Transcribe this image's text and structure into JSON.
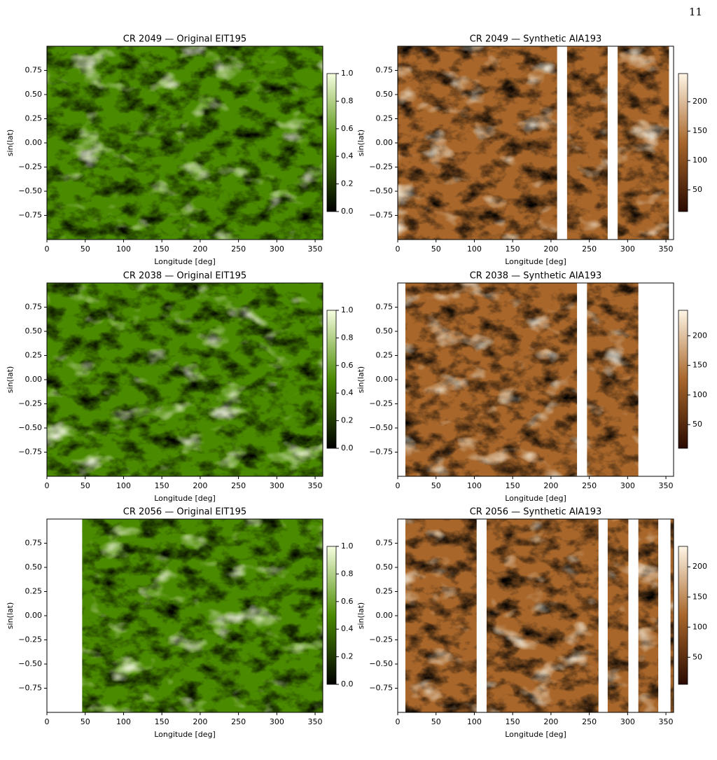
{
  "page_number": "11",
  "chart_data": [
    {
      "type": "heatmap",
      "title": "CR 2049 — Original EIT195",
      "xlabel": "Longitude [deg]",
      "ylabel": "sin(lat)",
      "xlim": [
        0,
        360
      ],
      "ylim": [
        -1,
        1
      ],
      "xticks": [
        0,
        50,
        100,
        150,
        200,
        250,
        300,
        350
      ],
      "yticks": [
        0.75,
        {
          "value": 0.5,
          "label": "0.50"
        },
        0.25,
        {
          "value": 0,
          "label": "0.00"
        },
        {
          "value": -0.25,
          "label": "−0.25"
        },
        {
          "value": -0.5,
          "label": "−0.50"
        },
        {
          "value": -0.75,
          "label": "−0.75"
        }
      ],
      "clim": [
        0,
        1
      ],
      "cticks": [
        {
          "value": 0,
          "label": "0.0"
        },
        0.2,
        0.4,
        0.6,
        0.8,
        {
          "value": 1,
          "label": "1.0"
        }
      ],
      "colors": [
        "#000000",
        "#4a8a00",
        "#f6ffe0"
      ]
    },
    {
      "type": "heatmap",
      "title": "CR 2049 — Synthetic AIA193",
      "xlabel": "Longitude [deg]",
      "ylabel": "sin(lat)",
      "xlim": [
        0,
        360
      ],
      "ylim": [
        -1,
        1
      ],
      "xticks": [
        0,
        50,
        100,
        150,
        200,
        250,
        300,
        350
      ],
      "yticks": [
        0.75,
        {
          "value": 0.5,
          "label": "0.50"
        },
        0.25,
        {
          "value": 0,
          "label": "0.00"
        },
        {
          "value": -0.25,
          "label": "−0.25"
        },
        {
          "value": -0.5,
          "label": "−0.50"
        },
        {
          "value": -0.75,
          "label": "−0.75"
        }
      ],
      "clim": [
        13,
        248
      ],
      "cticks": [
        50,
        100,
        150,
        200
      ],
      "colors": [
        "#2a0a00",
        "#a8662a",
        "#fff6e6"
      ],
      "gaps": [
        [
          208,
          221
        ],
        [
          274,
          287
        ],
        [
          354,
          360
        ]
      ]
    },
    {
      "type": "heatmap",
      "title": "CR 2038 — Original EIT195",
      "xlabel": "Longitude [deg]",
      "ylabel": "sin(lat)",
      "xlim": [
        0,
        360
      ],
      "ylim": [
        -1,
        1
      ],
      "xticks": [
        0,
        50,
        100,
        150,
        200,
        250,
        300,
        350
      ],
      "yticks": [
        0.75,
        {
          "value": 0.5,
          "label": "0.50"
        },
        0.25,
        {
          "value": 0,
          "label": "0.00"
        },
        {
          "value": -0.25,
          "label": "−0.25"
        },
        {
          "value": -0.5,
          "label": "−0.50"
        },
        {
          "value": -0.75,
          "label": "−0.75"
        }
      ],
      "clim": [
        0,
        1
      ],
      "cticks": [
        {
          "value": 0,
          "label": "0.0"
        },
        0.2,
        0.4,
        0.6,
        0.8,
        {
          "value": 1,
          "label": "1.0"
        }
      ],
      "colors": [
        "#000000",
        "#4a8a00",
        "#f6ffe0"
      ]
    },
    {
      "type": "heatmap",
      "title": "CR 2038 — Synthetic AIA193",
      "xlabel": "Longitude [deg]",
      "ylabel": "sin(lat)",
      "xlim": [
        0,
        360
      ],
      "ylim": [
        -1,
        1
      ],
      "xticks": [
        0,
        50,
        100,
        150,
        200,
        250,
        300,
        350
      ],
      "yticks": [
        0.75,
        {
          "value": 0.5,
          "label": "0.50"
        },
        0.25,
        {
          "value": 0,
          "label": "0.00"
        },
        {
          "value": -0.25,
          "label": "−0.25"
        },
        {
          "value": -0.5,
          "label": "−0.50"
        },
        {
          "value": -0.75,
          "label": "−0.75"
        }
      ],
      "clim": [
        10,
        243
      ],
      "cticks": [
        50,
        100,
        150,
        200
      ],
      "colors": [
        "#2a0a00",
        "#a8662a",
        "#fff6e6"
      ],
      "gaps": [
        [
          0,
          10
        ],
        [
          234,
          247
        ],
        [
          314,
          360
        ]
      ]
    },
    {
      "type": "heatmap",
      "title": "CR 2056 — Original EIT195",
      "xlabel": "Longitude [deg]",
      "ylabel": "sin(lat)",
      "xlim": [
        0,
        360
      ],
      "ylim": [
        -1,
        1
      ],
      "xticks": [
        0,
        50,
        100,
        150,
        200,
        250,
        300,
        350
      ],
      "yticks": [
        0.75,
        {
          "value": 0.5,
          "label": "0.50"
        },
        0.25,
        {
          "value": 0,
          "label": "0.00"
        },
        {
          "value": -0.25,
          "label": "−0.25"
        },
        {
          "value": -0.5,
          "label": "−0.50"
        },
        {
          "value": -0.75,
          "label": "−0.75"
        }
      ],
      "clim": [
        0,
        1
      ],
      "cticks": [
        {
          "value": 0,
          "label": "0.0"
        },
        0.2,
        0.4,
        0.6,
        0.8,
        {
          "value": 1,
          "label": "1.0"
        }
      ],
      "colors": [
        "#000000",
        "#4a8a00",
        "#f6ffe0"
      ],
      "gaps": [
        [
          0,
          46
        ]
      ]
    },
    {
      "type": "heatmap",
      "title": "CR 2056 — Synthetic AIA193",
      "xlabel": "Longitude [deg]",
      "ylabel": "sin(lat)",
      "xlim": [
        0,
        360
      ],
      "ylim": [
        -1,
        1
      ],
      "xticks": [
        0,
        50,
        100,
        150,
        200,
        250,
        300,
        350
      ],
      "yticks": [
        0.75,
        {
          "value": 0.5,
          "label": "0.50"
        },
        0.25,
        {
          "value": 0,
          "label": "0.00"
        },
        {
          "value": -0.25,
          "label": "−0.25"
        },
        {
          "value": -0.5,
          "label": "−0.50"
        },
        {
          "value": -0.75,
          "label": "−0.75"
        }
      ],
      "clim": [
        5,
        234
      ],
      "cticks": [
        50,
        100,
        150,
        200
      ],
      "colors": [
        "#2a0a00",
        "#a8662a",
        "#fff6e6"
      ],
      "gaps": [
        [
          0,
          10
        ],
        [
          103,
          116
        ],
        [
          262,
          274
        ],
        [
          301,
          314
        ],
        [
          340,
          356
        ]
      ]
    }
  ]
}
